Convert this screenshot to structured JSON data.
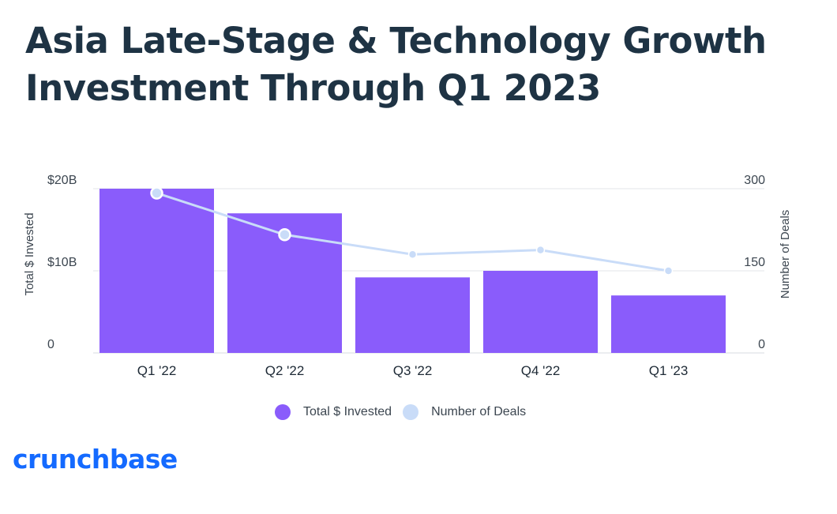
{
  "title_line1": "Asia Late-Stage & Technology Growth",
  "title_line2": "Investment Through Q1 2023",
  "logo_text": "crunchbase",
  "colors": {
    "bar": "#8a5cfb",
    "line": "#c9dcf8",
    "title": "#1e3344",
    "logo": "#146aff"
  },
  "legend": [
    {
      "label": "Total $ Invested",
      "color": "#8a5cfb"
    },
    {
      "label": "Number of Deals",
      "color": "#c9dcf8"
    }
  ],
  "chart_data": {
    "type": "bar",
    "categories": [
      "Q1 '22",
      "Q2 '22",
      "Q3 '22",
      "Q4 '22",
      "Q1 '23"
    ],
    "series": [
      {
        "name": "Total $ Invested",
        "type": "bar",
        "axis": "left",
        "values": [
          20.0,
          17.0,
          9.2,
          10.0,
          7.0
        ]
      },
      {
        "name": "Number of Deals",
        "type": "line",
        "axis": "right",
        "values": [
          292,
          216,
          180,
          188,
          150
        ]
      }
    ],
    "ylabel": "Total $ Invested",
    "ylabel_right": "Number of Deals",
    "ylim": [
      0,
      20
    ],
    "ylim_right": [
      0,
      300
    ],
    "yticks": [
      {
        "value": 0,
        "label": "0"
      },
      {
        "value": 10,
        "label": "$10B"
      },
      {
        "value": 20,
        "label": "$20B"
      }
    ],
    "yticks_right": [
      {
        "value": 0,
        "label": "0"
      },
      {
        "value": 150,
        "label": "150"
      },
      {
        "value": 300,
        "label": "300"
      }
    ],
    "grid": true,
    "legend_position": "bottom"
  }
}
